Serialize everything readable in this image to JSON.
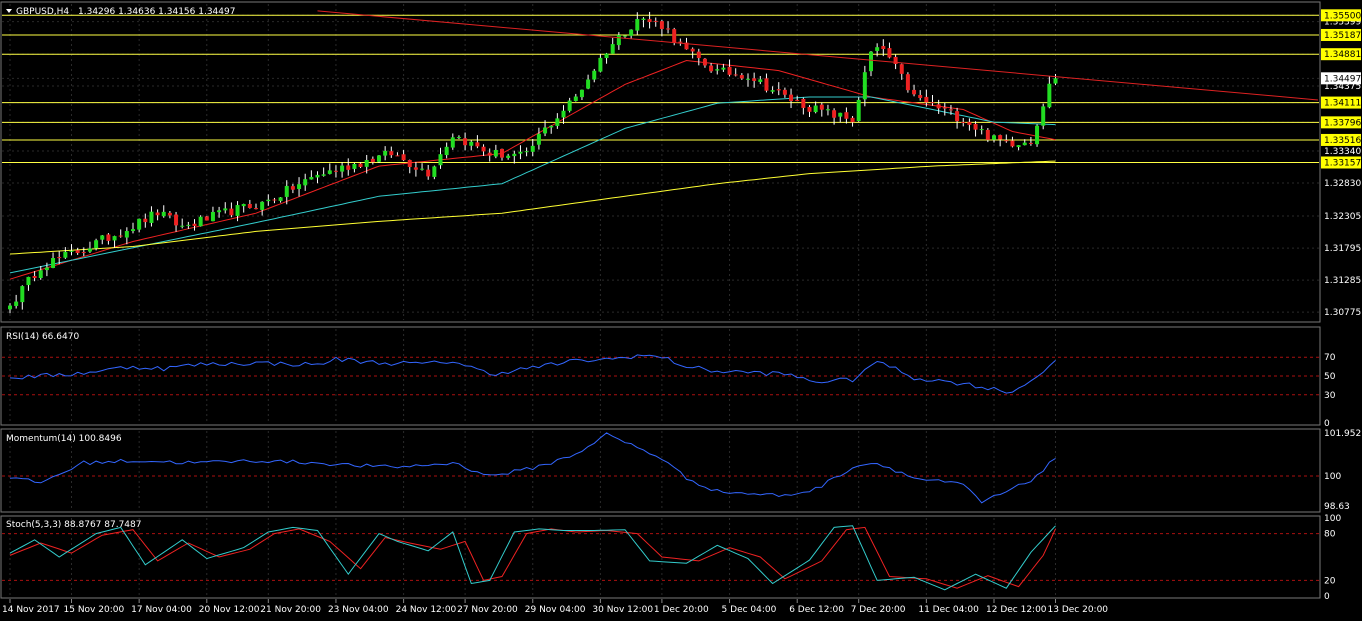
{
  "header": {
    "symbol": "GBPUSD,H4",
    "ohlc": "1.34296 1.34636 1.34156 1.34497"
  },
  "colors": {
    "background": "#000000",
    "bull": "#22dd22",
    "bear": "#ee2222",
    "wick": "#ffffff",
    "grid": "#2a2a2a",
    "hline": "#ffff44",
    "price_tag": "#ffff00",
    "trendline": "#dd2222",
    "ma_fast": "#ee2222",
    "ma_mid": "#33cccc",
    "ma_slow": "#ffff33",
    "indicator_line": "#3366ff",
    "stoch_main": "#33cccc",
    "stoch_signal": "#ee2222",
    "level_line": "#aa1111"
  },
  "chart_data": [
    {
      "type": "candlestick",
      "title": "GBPUSD,H4",
      "ylim": [
        1.3065,
        1.3568
      ],
      "y_ticks": [
        "1.35500",
        "1.35399",
        "1.35187",
        "1.34881",
        "1.34497",
        "1.34375",
        "1.34111",
        "1.33796",
        "1.33516",
        "1.33340",
        "1.33157",
        "1.32830",
        "1.32305",
        "1.31795",
        "1.31285",
        "1.30775"
      ],
      "horizontal_levels": [
        1.355,
        1.35187,
        1.34881,
        1.34111,
        1.33796,
        1.33516,
        1.33157
      ],
      "level_labels": [
        "1.35500",
        "1.35187",
        "1.34881",
        "1.34111",
        "1.33796",
        "1.33516",
        "1.33157"
      ],
      "current_price": "1.34497",
      "trendline": {
        "from": [
          50,
          1.3557
        ],
        "to": [
          182,
          1.3442
        ]
      },
      "bars": 171,
      "seed_points": [
        [
          0,
          1.3088
        ],
        [
          5,
          1.3152
        ],
        [
          12,
          1.3178
        ],
        [
          20,
          1.3215
        ],
        [
          24,
          1.3236
        ],
        [
          28,
          1.3213
        ],
        [
          36,
          1.3239
        ],
        [
          41,
          1.325
        ],
        [
          50,
          1.3296
        ],
        [
          55,
          1.331
        ],
        [
          62,
          1.333
        ],
        [
          68,
          1.33
        ],
        [
          72,
          1.336
        ],
        [
          78,
          1.333
        ],
        [
          84,
          1.3326
        ],
        [
          86,
          1.3358
        ],
        [
          92,
          1.342
        ],
        [
          97,
          1.3495
        ],
        [
          102,
          1.3545
        ],
        [
          106,
          1.3535
        ],
        [
          110,
          1.3492
        ],
        [
          115,
          1.346
        ],
        [
          120,
          1.3455
        ],
        [
          126,
          1.342
        ],
        [
          131,
          1.34
        ],
        [
          137,
          1.3383
        ],
        [
          140,
          1.349
        ],
        [
          142,
          1.3496
        ],
        [
          147,
          1.342
        ],
        [
          155,
          1.3385
        ],
        [
          160,
          1.3352
        ],
        [
          163,
          1.3348
        ],
        [
          166,
          1.3352
        ],
        [
          170,
          1.3466
        ]
      ],
      "ma_fast_seed": [
        [
          0,
          1.313
        ],
        [
          20,
          1.319
        ],
        [
          40,
          1.3235
        ],
        [
          60,
          1.331
        ],
        [
          80,
          1.333
        ],
        [
          100,
          1.344
        ],
        [
          110,
          1.3478
        ],
        [
          125,
          1.3462
        ],
        [
          140,
          1.342
        ],
        [
          155,
          1.34
        ],
        [
          163,
          1.3365
        ],
        [
          170,
          1.3352
        ]
      ],
      "ma_mid_seed": [
        [
          0,
          1.314
        ],
        [
          20,
          1.318
        ],
        [
          40,
          1.322
        ],
        [
          60,
          1.3262
        ],
        [
          80,
          1.3282
        ],
        [
          100,
          1.337
        ],
        [
          115,
          1.341
        ],
        [
          130,
          1.342
        ],
        [
          140,
          1.342
        ],
        [
          150,
          1.34
        ],
        [
          160,
          1.338
        ],
        [
          170,
          1.3376
        ]
      ],
      "ma_slow_seed": [
        [
          0,
          1.317
        ],
        [
          20,
          1.3182
        ],
        [
          40,
          1.3206
        ],
        [
          60,
          1.3222
        ],
        [
          80,
          1.3235
        ],
        [
          100,
          1.3262
        ],
        [
          115,
          1.3282
        ],
        [
          130,
          1.3298
        ],
        [
          150,
          1.331
        ],
        [
          170,
          1.3318
        ]
      ]
    },
    {
      "type": "line",
      "title": "RSI(14) 66.6470",
      "ylim": [
        0,
        100
      ],
      "y_ticks": [
        "70",
        "50",
        "30",
        "0"
      ],
      "levels": [
        70,
        50,
        30
      ],
      "seed_points": [
        [
          0,
          48
        ],
        [
          10,
          52
        ],
        [
          20,
          60
        ],
        [
          25,
          58
        ],
        [
          30,
          62
        ],
        [
          40,
          64
        ],
        [
          50,
          62
        ],
        [
          53,
          68
        ],
        [
          60,
          64
        ],
        [
          68,
          63
        ],
        [
          72,
          66
        ],
        [
          78,
          52
        ],
        [
          84,
          58
        ],
        [
          92,
          66
        ],
        [
          98,
          68
        ],
        [
          102,
          72
        ],
        [
          106,
          70
        ],
        [
          110,
          60
        ],
        [
          115,
          55
        ],
        [
          120,
          54
        ],
        [
          126,
          52
        ],
        [
          131,
          44
        ],
        [
          137,
          46
        ],
        [
          140,
          62
        ],
        [
          142,
          64
        ],
        [
          147,
          48
        ],
        [
          155,
          42
        ],
        [
          160,
          36
        ],
        [
          163,
          33
        ],
        [
          166,
          45
        ],
        [
          170,
          66.6
        ]
      ]
    },
    {
      "type": "line",
      "title": "Momentum(14) 100.8496",
      "ylim": [
        98.45,
        102.05
      ],
      "y_ticks": [
        "101.9521",
        "100",
        "98.63"
      ],
      "levels": [
        100
      ],
      "seed_points": [
        [
          0,
          99.9
        ],
        [
          5,
          99.7
        ],
        [
          12,
          100.6
        ],
        [
          20,
          100.7
        ],
        [
          30,
          100.6
        ],
        [
          40,
          100.7
        ],
        [
          50,
          100.6
        ],
        [
          55,
          100.5
        ],
        [
          62,
          100.4
        ],
        [
          68,
          100.5
        ],
        [
          72,
          100.6
        ],
        [
          78,
          100.0
        ],
        [
          84,
          100.3
        ],
        [
          88,
          100.6
        ],
        [
          92,
          101.0
        ],
        [
          97,
          101.9
        ],
        [
          102,
          101.3
        ],
        [
          106,
          100.8
        ],
        [
          110,
          99.9
        ],
        [
          115,
          99.3
        ],
        [
          120,
          99.2
        ],
        [
          126,
          99.1
        ],
        [
          131,
          99.4
        ],
        [
          137,
          100.4
        ],
        [
          140,
          100.6
        ],
        [
          142,
          100.5
        ],
        [
          147,
          99.9
        ],
        [
          155,
          99.6
        ],
        [
          158,
          98.8
        ],
        [
          163,
          99.4
        ],
        [
          166,
          99.8
        ],
        [
          170,
          100.8
        ]
      ]
    },
    {
      "type": "line",
      "title": "Stoch(5,3,3) 88.8767 87.7487",
      "ylim": [
        0,
        100
      ],
      "y_ticks": [
        "100",
        "80",
        "20",
        "0"
      ],
      "levels": [
        80,
        20
      ],
      "seed_points": [
        [
          0,
          55
        ],
        [
          4,
          72
        ],
        [
          8,
          50
        ],
        [
          14,
          80
        ],
        [
          18,
          88
        ],
        [
          22,
          40
        ],
        [
          28,
          72
        ],
        [
          32,
          48
        ],
        [
          38,
          62
        ],
        [
          42,
          82
        ],
        [
          46,
          88
        ],
        [
          50,
          84
        ],
        [
          55,
          28
        ],
        [
          60,
          80
        ],
        [
          63,
          70
        ],
        [
          68,
          58
        ],
        [
          72,
          82
        ],
        [
          75,
          16
        ],
        [
          78,
          20
        ],
        [
          82,
          82
        ],
        [
          86,
          86
        ],
        [
          90,
          84
        ],
        [
          95,
          84
        ],
        [
          100,
          85
        ],
        [
          104,
          45
        ],
        [
          110,
          42
        ],
        [
          115,
          65
        ],
        [
          120,
          48
        ],
        [
          124,
          16
        ],
        [
          130,
          46
        ],
        [
          134,
          88
        ],
        [
          137,
          90
        ],
        [
          141,
          20
        ],
        [
          147,
          24
        ],
        [
          152,
          8
        ],
        [
          157,
          28
        ],
        [
          162,
          10
        ],
        [
          166,
          56
        ],
        [
          170,
          90
        ]
      ],
      "signal_seed": [
        [
          0,
          52
        ],
        [
          5,
          68
        ],
        [
          10,
          55
        ],
        [
          15,
          78
        ],
        [
          20,
          85
        ],
        [
          24,
          45
        ],
        [
          29,
          68
        ],
        [
          34,
          50
        ],
        [
          39,
          60
        ],
        [
          43,
          80
        ],
        [
          47,
          86
        ],
        [
          52,
          70
        ],
        [
          57,
          35
        ],
        [
          61,
          75
        ],
        [
          65,
          68
        ],
        [
          70,
          60
        ],
        [
          74,
          70
        ],
        [
          77,
          20
        ],
        [
          80,
          25
        ],
        [
          84,
          80
        ],
        [
          88,
          86
        ],
        [
          92,
          82
        ],
        [
          97,
          84
        ],
        [
          102,
          80
        ],
        [
          106,
          50
        ],
        [
          112,
          45
        ],
        [
          117,
          62
        ],
        [
          122,
          50
        ],
        [
          126,
          22
        ],
        [
          132,
          45
        ],
        [
          136,
          85
        ],
        [
          139,
          88
        ],
        [
          143,
          25
        ],
        [
          149,
          22
        ],
        [
          154,
          10
        ],
        [
          159,
          26
        ],
        [
          164,
          12
        ],
        [
          168,
          52
        ],
        [
          170,
          86
        ]
      ]
    }
  ],
  "time_axis": {
    "labels": [
      "14 Nov 2017",
      "15 Nov 20:00",
      "17 Nov 04:00",
      "20 Nov 12:00",
      "21 Nov 20:00",
      "23 Nov 04:00",
      "24 Nov 12:00",
      "27 Nov 20:00",
      "29 Nov 04:00",
      "30 Nov 12:00",
      "1 Dec 20:00",
      "5 Dec 04:00",
      "6 Dec 12:00",
      "7 Dec 20:00",
      "11 Dec 04:00",
      "12 Dec 12:00",
      "13 Dec 20:00"
    ],
    "label_bars": [
      0,
      10,
      21,
      32,
      42,
      53,
      64,
      74,
      85,
      96,
      106,
      117,
      128,
      138,
      149,
      160,
      170
    ]
  }
}
